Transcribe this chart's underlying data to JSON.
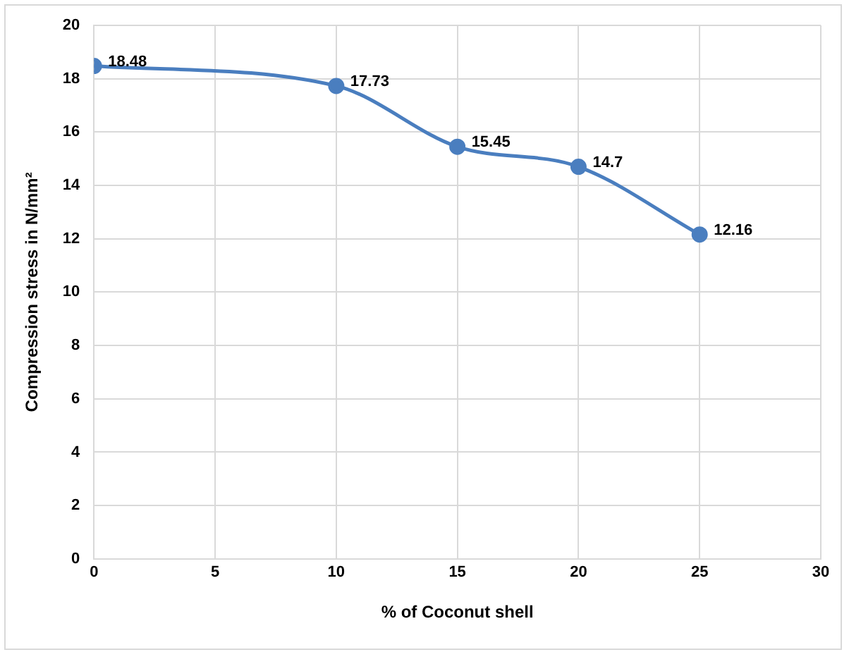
{
  "chart_data": {
    "type": "line",
    "xlabel": "% of Coconut shell",
    "ylabel": "Compression stress in N/mm²",
    "x": [
      0,
      10,
      15,
      20,
      25
    ],
    "series": [
      {
        "color": "#4a7ebf",
        "values": [
          18.48,
          17.73,
          15.45,
          14.7,
          12.16
        ]
      }
    ],
    "xlim": [
      0,
      30
    ],
    "xticks": [
      0,
      5,
      10,
      15,
      20,
      25,
      30
    ],
    "ylim": [
      0,
      20
    ],
    "yticks": [
      0,
      2,
      4,
      6,
      8,
      10,
      12,
      14,
      16,
      18,
      20
    ],
    "grid": true,
    "legend": false,
    "marker": "circle",
    "line_style": "solid",
    "data_labels": true
  }
}
